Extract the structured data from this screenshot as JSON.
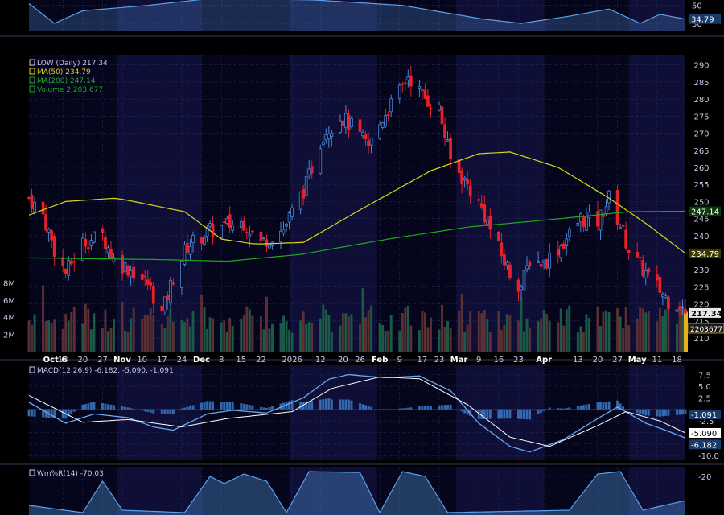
{
  "colors": {
    "background": "#000000",
    "panel_bg": "#05051c",
    "shade": "#0e0e36",
    "grid": "#2a3a6a",
    "text": "#c8c8e6",
    "up_candle": "#4a88d8",
    "down_candle": "#e8202a",
    "ma50": "#d8d818",
    "ma200": "#20a820",
    "vol_up": "#1c5a48",
    "vol_down": "#5a3032",
    "macd": "#6aa8f0",
    "signal": "#ffffff",
    "hist": "#3a7ac8",
    "osc": "#5aa0e8",
    "price_tag": "#e8e8e8",
    "vol_tag": "#e8b020"
  },
  "top_panel": {
    "ticks": [
      "50",
      "30"
    ],
    "last_tag": "34.79"
  },
  "price_panel": {
    "legend": [
      {
        "icon": "candle-icon",
        "text": "LOW (Daily) 217.34",
        "color": "#c8c8e6"
      },
      {
        "icon": "line-icon",
        "text": "MA(50) 234.79",
        "color": "#d8d818"
      },
      {
        "icon": "line-icon",
        "text": "MA(200) 247.14",
        "color": "#20a820"
      },
      {
        "icon": "bars-icon",
        "text": "Volume 2,203,677",
        "color": "#20a820"
      }
    ],
    "y_ticks": [
      "290",
      "285",
      "280",
      "275",
      "270",
      "265",
      "260",
      "255",
      "250",
      "245",
      "240",
      "235",
      "230",
      "225",
      "220",
      "215",
      "210"
    ],
    "volume_ticks": [
      "8M",
      "6M",
      "4M",
      "2M"
    ],
    "tags": {
      "ma200": "247.14",
      "ma50": "234.79",
      "price": "217.34",
      "volume": "2203677"
    },
    "x_labels": [
      "Oct 6",
      "13",
      "20",
      "27",
      "Nov",
      "10",
      "17",
      "24",
      "Dec",
      "8",
      "15",
      "22",
      "2026",
      "12",
      "20",
      "26",
      "Feb",
      "9",
      "17",
      "23",
      "Mar",
      "9",
      "16",
      "23",
      "Apr",
      "13",
      "20",
      "27",
      "May",
      "11",
      "18"
    ]
  },
  "macd_panel": {
    "legend": "MACD(12,26,9) -6.182, -5.090, -1.091",
    "y_ticks": [
      "7.5",
      "5.0",
      "2.5",
      "-2.5",
      "-5.0",
      "-7.5",
      "-10.0"
    ],
    "tags": [
      "-1.091",
      "-5.090",
      "-6.182"
    ]
  },
  "willr_panel": {
    "legend": "Wm%R(14) -70.03",
    "y_ticks": [
      "-20"
    ]
  },
  "chart_data": {
    "type": "candlestick",
    "symbol": "LOW",
    "interval": "Daily",
    "ylim": [
      206,
      293
    ],
    "volume_ylim": [
      0,
      10000000
    ],
    "last_close": 217.34,
    "last_volume": 2203677,
    "ma50_last": 234.79,
    "ma200_last": 247.14,
    "close_anchors": [
      {
        "date": "2025-10-01",
        "value": 251
      },
      {
        "date": "2025-10-06",
        "value": 246
      },
      {
        "date": "2025-10-10",
        "value": 236
      },
      {
        "date": "2025-10-14",
        "value": 229
      },
      {
        "date": "2025-10-20",
        "value": 238
      },
      {
        "date": "2025-10-27",
        "value": 240
      },
      {
        "date": "2025-10-31",
        "value": 233
      },
      {
        "date": "2025-11-06",
        "value": 230
      },
      {
        "date": "2025-11-12",
        "value": 226
      },
      {
        "date": "2025-11-17",
        "value": 217
      },
      {
        "date": "2025-11-21",
        "value": 228
      },
      {
        "date": "2025-11-26",
        "value": 237
      },
      {
        "date": "2025-12-03",
        "value": 241
      },
      {
        "date": "2025-12-10",
        "value": 243
      },
      {
        "date": "2025-12-16",
        "value": 244
      },
      {
        "date": "2025-12-22",
        "value": 238
      },
      {
        "date": "2025-12-30",
        "value": 242
      },
      {
        "date": "2026-01-07",
        "value": 255
      },
      {
        "date": "2026-01-13",
        "value": 270
      },
      {
        "date": "2026-01-19",
        "value": 275
      },
      {
        "date": "2026-01-23",
        "value": 272
      },
      {
        "date": "2026-01-29",
        "value": 266
      },
      {
        "date": "2026-02-04",
        "value": 276
      },
      {
        "date": "2026-02-09",
        "value": 282
      },
      {
        "date": "2026-02-12",
        "value": 287
      },
      {
        "date": "2026-02-17",
        "value": 281
      },
      {
        "date": "2026-02-23",
        "value": 277
      },
      {
        "date": "2026-02-27",
        "value": 262
      },
      {
        "date": "2026-03-04",
        "value": 256
      },
      {
        "date": "2026-03-10",
        "value": 248
      },
      {
        "date": "2026-03-16",
        "value": 236
      },
      {
        "date": "2026-03-20",
        "value": 229
      },
      {
        "date": "2026-03-24",
        "value": 225
      },
      {
        "date": "2026-03-27",
        "value": 233
      },
      {
        "date": "2026-04-01",
        "value": 232
      },
      {
        "date": "2026-04-08",
        "value": 238
      },
      {
        "date": "2026-04-14",
        "value": 245
      },
      {
        "date": "2026-04-20",
        "value": 244
      },
      {
        "date": "2026-04-24",
        "value": 251
      },
      {
        "date": "2026-04-28",
        "value": 243
      },
      {
        "date": "2026-05-01",
        "value": 236
      },
      {
        "date": "2026-05-05",
        "value": 231
      },
      {
        "date": "2026-05-08",
        "value": 228
      },
      {
        "date": "2026-05-12",
        "value": 224
      },
      {
        "date": "2026-05-15",
        "value": 221
      },
      {
        "date": "2026-05-19",
        "value": 220
      },
      {
        "date": "2026-05-21",
        "value": 217.34
      }
    ],
    "ma50_anchors": [
      {
        "date": "2025-10-01",
        "value": 246
      },
      {
        "date": "2025-10-14",
        "value": 250
      },
      {
        "date": "2025-11-01",
        "value": 251
      },
      {
        "date": "2025-11-25",
        "value": 247
      },
      {
        "date": "2025-12-08",
        "value": 239
      },
      {
        "date": "2025-12-20",
        "value": 237.5
      },
      {
        "date": "2026-01-06",
        "value": 238
      },
      {
        "date": "2026-01-27",
        "value": 248
      },
      {
        "date": "2026-02-20",
        "value": 259
      },
      {
        "date": "2026-03-09",
        "value": 264
      },
      {
        "date": "2026-03-20",
        "value": 264.5
      },
      {
        "date": "2026-04-06",
        "value": 260
      },
      {
        "date": "2026-04-24",
        "value": 251
      },
      {
        "date": "2026-05-08",
        "value": 243
      },
      {
        "date": "2026-05-21",
        "value": 234.79
      }
    ],
    "ma200_anchors": [
      {
        "date": "2025-10-01",
        "value": 233.5
      },
      {
        "date": "2025-11-15",
        "value": 233
      },
      {
        "date": "2025-12-10",
        "value": 232.5
      },
      {
        "date": "2026-01-05",
        "value": 234.5
      },
      {
        "date": "2026-02-05",
        "value": 239
      },
      {
        "date": "2026-03-05",
        "value": 242.5
      },
      {
        "date": "2026-04-01",
        "value": 244.5
      },
      {
        "date": "2026-05-01",
        "value": 247
      },
      {
        "date": "2026-05-21",
        "value": 247.14
      }
    ],
    "macd": {
      "ylim": [
        -11,
        9.5
      ],
      "last": {
        "macd": -6.182,
        "signal": -5.09,
        "histogram": -1.091
      },
      "macd_anchors": [
        {
          "date": "2025-10-01",
          "value": 1.5
        },
        {
          "date": "2025-10-14",
          "value": -3.0
        },
        {
          "date": "2025-10-24",
          "value": -1.0
        },
        {
          "date": "2025-11-05",
          "value": -1.8
        },
        {
          "date": "2025-11-14",
          "value": -3.8
        },
        {
          "date": "2025-11-21",
          "value": -4.5
        },
        {
          "date": "2025-12-03",
          "value": -1.0
        },
        {
          "date": "2025-12-12",
          "value": -0.2
        },
        {
          "date": "2025-12-24",
          "value": -0.8
        },
        {
          "date": "2026-01-06",
          "value": 2.5
        },
        {
          "date": "2026-01-15",
          "value": 6.5
        },
        {
          "date": "2026-01-22",
          "value": 7.5
        },
        {
          "date": "2026-02-04",
          "value": 6.8
        },
        {
          "date": "2026-02-16",
          "value": 7.2
        },
        {
          "date": "2026-02-27",
          "value": 4.0
        },
        {
          "date": "2026-03-09",
          "value": -3.0
        },
        {
          "date": "2026-03-20",
          "value": -8.0
        },
        {
          "date": "2026-03-27",
          "value": -9.2
        },
        {
          "date": "2026-04-08",
          "value": -6.5
        },
        {
          "date": "2026-04-20",
          "value": -2.0
        },
        {
          "date": "2026-04-27",
          "value": 0.5
        },
        {
          "date": "2026-05-07",
          "value": -3.0
        },
        {
          "date": "2026-05-14",
          "value": -4.5
        },
        {
          "date": "2026-05-21",
          "value": -6.182
        }
      ],
      "signal_anchors": [
        {
          "date": "2025-10-01",
          "value": 3.0
        },
        {
          "date": "2025-10-20",
          "value": -2.8
        },
        {
          "date": "2025-11-05",
          "value": -2.2
        },
        {
          "date": "2025-11-24",
          "value": -3.8
        },
        {
          "date": "2025-12-10",
          "value": -2.0
        },
        {
          "date": "2026-01-02",
          "value": -0.5
        },
        {
          "date": "2026-01-16",
          "value": 4.5
        },
        {
          "date": "2026-02-02",
          "value": 7.0
        },
        {
          "date": "2026-02-16",
          "value": 6.6
        },
        {
          "date": "2026-03-05",
          "value": 1.0
        },
        {
          "date": "2026-03-20",
          "value": -6.0
        },
        {
          "date": "2026-04-03",
          "value": -8.0
        },
        {
          "date": "2026-04-20",
          "value": -3.5
        },
        {
          "date": "2026-04-30",
          "value": -0.5
        },
        {
          "date": "2026-05-12",
          "value": -2.5
        },
        {
          "date": "2026-05-21",
          "value": -5.09
        }
      ]
    },
    "williams_r": {
      "ylim": [
        -100,
        0
      ],
      "last": -70.03,
      "anchors": [
        {
          "date": "2025-10-01",
          "value": -80
        },
        {
          "date": "2025-10-20",
          "value": -95
        },
        {
          "date": "2025-10-27",
          "value": -30
        },
        {
          "date": "2025-11-03",
          "value": -90
        },
        {
          "date": "2025-11-25",
          "value": -95
        },
        {
          "date": "2025-12-04",
          "value": -20
        },
        {
          "date": "2025-12-09",
          "value": -35
        },
        {
          "date": "2025-12-16",
          "value": -15
        },
        {
          "date": "2025-12-24",
          "value": -30
        },
        {
          "date": "2025-12-31",
          "value": -95
        },
        {
          "date": "2026-01-08",
          "value": -10
        },
        {
          "date": "2026-01-26",
          "value": -12
        },
        {
          "date": "2026-02-02",
          "value": -95
        },
        {
          "date": "2026-02-10",
          "value": -10
        },
        {
          "date": "2026-02-18",
          "value": -20
        },
        {
          "date": "2026-02-26",
          "value": -95
        },
        {
          "date": "2026-04-10",
          "value": -90
        },
        {
          "date": "2026-04-20",
          "value": -15
        },
        {
          "date": "2026-04-28",
          "value": -10
        },
        {
          "date": "2026-05-06",
          "value": -90
        },
        {
          "date": "2026-05-21",
          "value": -70.03
        }
      ]
    },
    "top_indicator": {
      "ylim": [
        22,
        56
      ],
      "last": 34.79,
      "anchors": [
        {
          "date": "2025-10-01",
          "value": 52
        },
        {
          "date": "2025-10-10",
          "value": 30
        },
        {
          "date": "2025-10-20",
          "value": 44
        },
        {
          "date": "2025-11-12",
          "value": 50
        },
        {
          "date": "2025-12-05",
          "value": 58
        },
        {
          "date": "2026-01-10",
          "value": 56
        },
        {
          "date": "2026-02-10",
          "value": 50
        },
        {
          "date": "2026-03-10",
          "value": 35
        },
        {
          "date": "2026-03-24",
          "value": 30
        },
        {
          "date": "2026-04-10",
          "value": 38
        },
        {
          "date": "2026-04-24",
          "value": 46
        },
        {
          "date": "2026-05-05",
          "value": 30
        },
        {
          "date": "2026-05-12",
          "value": 40
        },
        {
          "date": "2026-05-21",
          "value": 34.79
        }
      ]
    }
  }
}
